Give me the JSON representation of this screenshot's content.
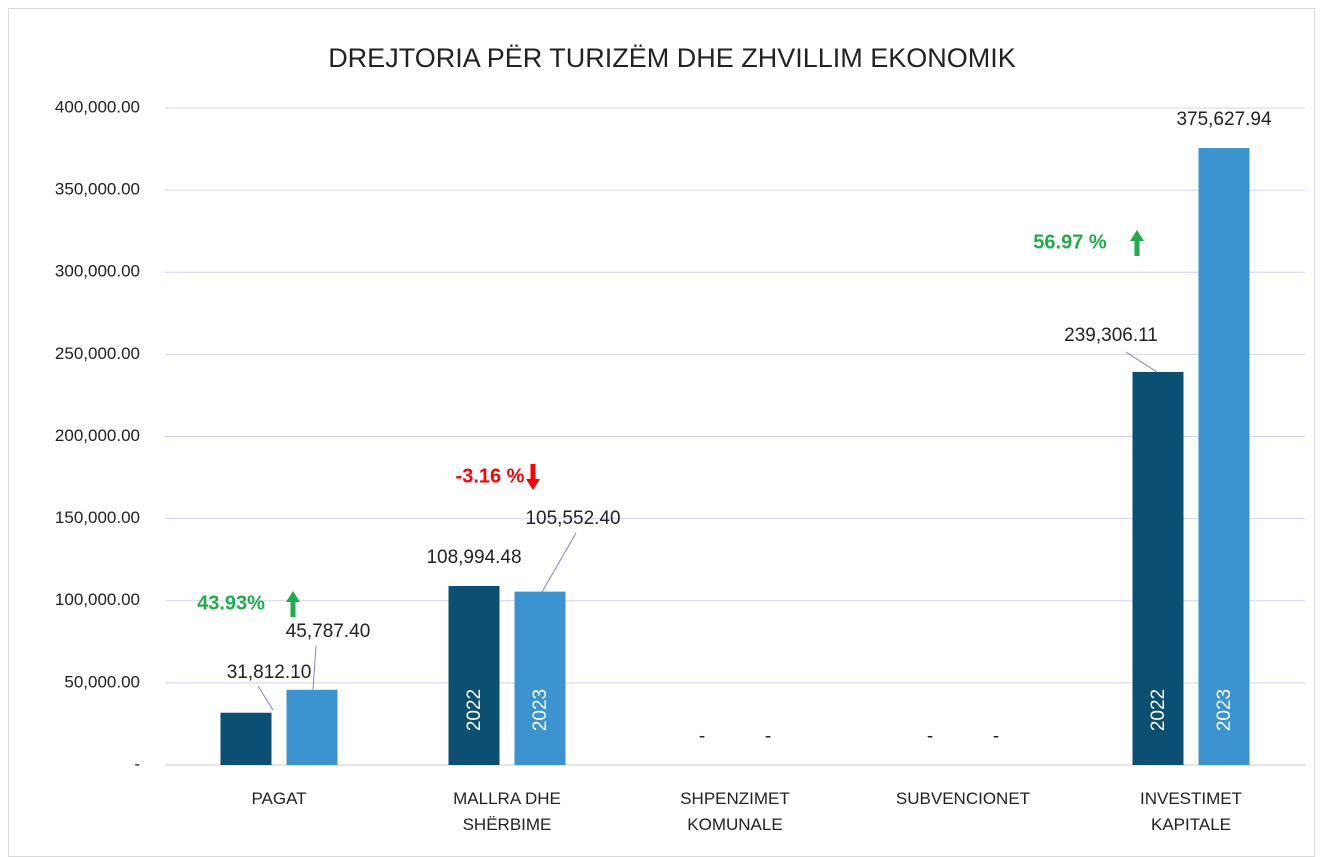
{
  "chart_data": {
    "type": "bar",
    "title": "DREJTORIA PËR TURIZËM DHE ZHVILLIM EKONOMIK",
    "categories": [
      "PAGAT",
      "MALLRA DHE SHËRBIME",
      "SHPENZIMET KOMUNALE",
      "SUBVENCIONET",
      "INVESTIMET KAPITALE"
    ],
    "series": [
      {
        "name": "2022",
        "color": "#0b4f72",
        "values": [
          31812.1,
          108994.48,
          0,
          0,
          239306.11
        ],
        "value_labels": [
          "31,812.10",
          "108,994.48",
          "-",
          "-",
          "239,306.11"
        ]
      },
      {
        "name": "2023",
        "color": "#3b93cf",
        "values": [
          45787.4,
          105552.4,
          0,
          0,
          375627.94
        ],
        "value_labels": [
          "45,787.40",
          "105,552.40",
          "-",
          "-",
          "375,627.94"
        ]
      }
    ],
    "ylim": [
      0,
      400000
    ],
    "yticks": [
      {
        "value": 0,
        "label": "-"
      },
      {
        "value": 50000,
        "label": "50,000.00"
      },
      {
        "value": 100000,
        "label": "100,000.00"
      },
      {
        "value": 150000,
        "label": "150,000.00"
      },
      {
        "value": 200000,
        "label": "200,000.00"
      },
      {
        "value": 250000,
        "label": "250,000.00"
      },
      {
        "value": 300000,
        "label": "300,000.00"
      },
      {
        "value": 350000,
        "label": "350,000.00"
      },
      {
        "value": 400000,
        "label": "400,000.00"
      }
    ],
    "grid": true,
    "annotations": [
      {
        "text": "43.93%",
        "color": "#1fad4b"
      },
      {
        "text": "-3.16 %",
        "color": "#ff0000"
      },
      {
        "text": "56.97 %",
        "color": "#1fad4b"
      }
    ]
  }
}
